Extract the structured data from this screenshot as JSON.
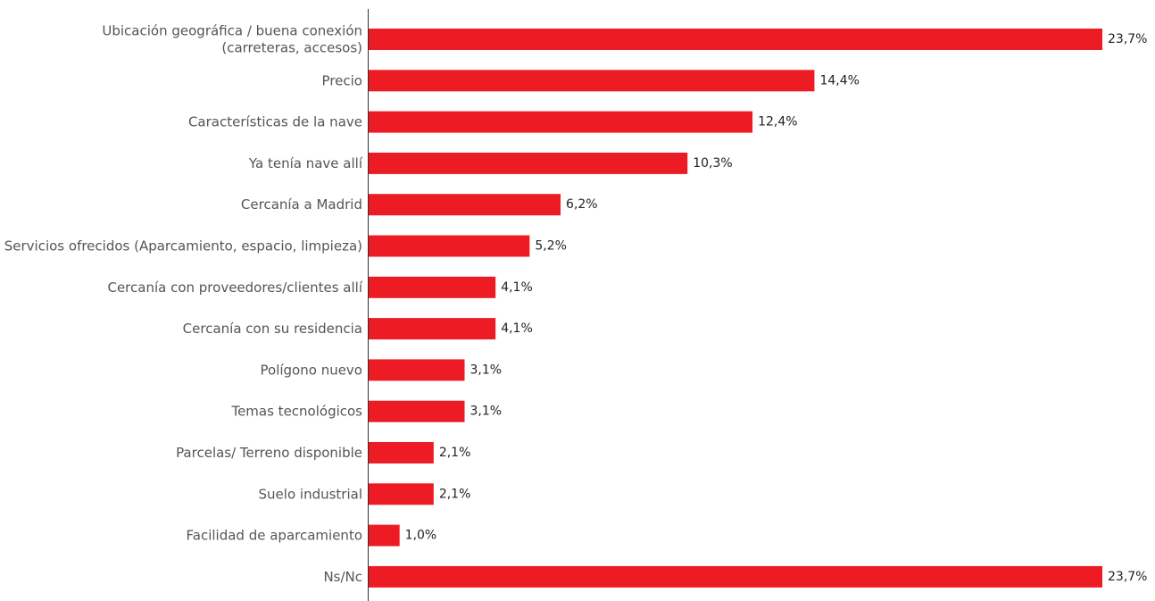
{
  "chart_data": {
    "type": "bar",
    "orientation": "horizontal",
    "categories": [
      [
        "Ubicación geográfica / buena conexión",
        "(carreteras, accesos)"
      ],
      [
        "Precio"
      ],
      [
        "Características de la nave"
      ],
      [
        "Ya tenía nave allí"
      ],
      [
        "Cercanía a Madrid"
      ],
      [
        "Servicios ofrecidos (Aparcamiento, espacio, limpieza)"
      ],
      [
        "Cercanía con proveedores/clientes allí"
      ],
      [
        "Cercanía con su residencia"
      ],
      [
        "Polígono nuevo"
      ],
      [
        "Temas tecnológicos"
      ],
      [
        "Parcelas/ Terreno disponible"
      ],
      [
        "Suelo industrial"
      ],
      [
        "Facilidad de aparcamiento"
      ],
      [
        "Ns/Nc"
      ]
    ],
    "values": [
      23.7,
      14.4,
      12.4,
      10.3,
      6.2,
      5.2,
      4.1,
      4.1,
      3.1,
      3.1,
      2.1,
      2.1,
      1.0,
      23.7
    ],
    "value_labels": [
      "23,7%",
      "14,4%",
      "12,4%",
      "10,3%",
      "6,2%",
      "5,2%",
      "4,1%",
      "4,1%",
      "3,1%",
      "3,1%",
      "2,1%",
      "2,1%",
      "1,0%",
      "23,7%"
    ],
    "xlim": [
      0,
      23.7
    ],
    "bar_color": "#ED1C24",
    "grid": false,
    "legend": "none"
  }
}
